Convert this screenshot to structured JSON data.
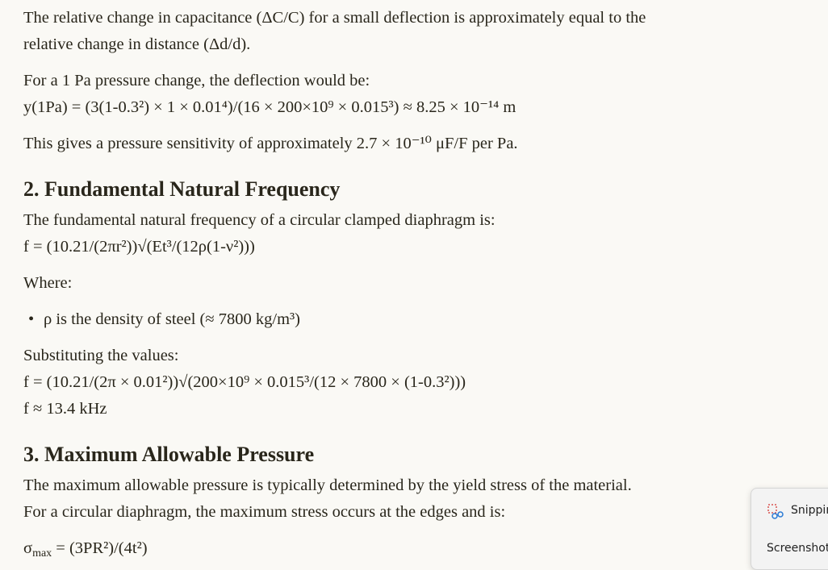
{
  "document": {
    "blocks": [
      {
        "lines": [
          "The relative change in capacitance (ΔC/C) for a small deflection is approximately equal to the",
          "relative change in distance (Δd/d)."
        ]
      },
      {
        "lines": [
          "For a 1 Pa pressure change, the deflection would be:",
          "y(1Pa) = (3(1-0.3²) × 1 × 0.01⁴)/(16 × 200×10⁹ × 0.015³) ≈ 8.25 × 10⁻¹⁴ m"
        ]
      },
      {
        "lines": [
          "This gives a pressure sensitivity of approximately 2.7 × 10⁻¹⁰ μF/F per Pa."
        ]
      },
      {
        "heading": "2. Fundamental Natural Frequency"
      },
      {
        "lines": [
          "The fundamental natural frequency of a circular clamped diaphragm is:",
          "f = (10.21/(2πr²))√(Et³/(12ρ(1-ν²)))"
        ]
      },
      {
        "lines": [
          "Where:"
        ]
      },
      {
        "bullets": [
          "ρ is the density of steel (≈ 7800 kg/m³)"
        ]
      },
      {
        "lines": [
          "Substituting the values:",
          "f = (10.21/(2π × 0.01²))√(200×10⁹ × 0.015³/(12 × 7800 × (1-0.3²)))",
          "f ≈ 13.4 kHz"
        ]
      },
      {
        "heading": "3. Maximum Allowable Pressure"
      },
      {
        "lines": [
          "The maximum allowable pressure is typically determined by the yield stress of the material.",
          "For a circular diaphragm, the maximum stress occurs at the edges and is:"
        ]
      }
    ],
    "formula": {
      "symbol": "σ",
      "subscript": "max",
      "rest": " = (3PR²)/(4t²)"
    },
    "notification": {
      "title": "Snipping Tool",
      "body": "Screenshot"
    }
  }
}
